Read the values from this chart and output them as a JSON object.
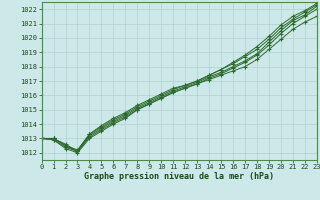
{
  "xlabel": "Graphe pression niveau de la mer (hPa)",
  "xlim": [
    0,
    23
  ],
  "ylim": [
    1011.5,
    1022.5
  ],
  "yticks": [
    1012,
    1013,
    1014,
    1015,
    1016,
    1017,
    1018,
    1019,
    1020,
    1021,
    1022
  ],
  "xticks": [
    0,
    1,
    2,
    3,
    4,
    5,
    6,
    7,
    8,
    9,
    10,
    11,
    12,
    13,
    14,
    15,
    16,
    17,
    18,
    19,
    20,
    21,
    22,
    23
  ],
  "bg_color": "#cce8e8",
  "grid_color": "#b0d0d0",
  "line_color": "#2d6a2d",
  "marker_color": "#2d6a2d",
  "axis_label_color": "#1a4a1a",
  "tick_label_color": "#1a4a1a",
  "border_color": "#4a8a4a",
  "curves": [
    [
      1013.0,
      1012.9,
      1012.4,
      1012.1,
      1013.1,
      1013.6,
      1014.1,
      1014.5,
      1015.0,
      1015.4,
      1015.8,
      1016.2,
      1016.5,
      1016.8,
      1017.1,
      1017.4,
      1017.7,
      1018.0,
      1018.5,
      1019.2,
      1019.9,
      1020.6,
      1021.1,
      1021.5
    ],
    [
      1013.0,
      1012.9,
      1012.3,
      1012.0,
      1013.0,
      1013.5,
      1014.0,
      1014.4,
      1015.0,
      1015.4,
      1015.8,
      1016.2,
      1016.5,
      1016.8,
      1017.2,
      1017.5,
      1017.9,
      1018.3,
      1018.8,
      1019.5,
      1020.3,
      1021.0,
      1021.5,
      1022.0
    ],
    [
      1013.0,
      1013.0,
      1012.5,
      1012.1,
      1013.2,
      1013.7,
      1014.2,
      1014.6,
      1015.1,
      1015.5,
      1015.9,
      1016.3,
      1016.6,
      1016.9,
      1017.3,
      1017.6,
      1018.0,
      1018.4,
      1018.9,
      1019.7,
      1020.5,
      1021.2,
      1021.6,
      1022.2
    ],
    [
      1013.0,
      1013.0,
      1012.6,
      1012.1,
      1013.3,
      1013.8,
      1014.3,
      1014.7,
      1015.2,
      1015.6,
      1016.0,
      1016.4,
      1016.7,
      1017.0,
      1017.4,
      1017.8,
      1018.2,
      1018.7,
      1019.2,
      1019.9,
      1020.7,
      1021.3,
      1021.8,
      1022.3
    ],
    [
      1013.0,
      1013.0,
      1012.5,
      1012.2,
      1013.3,
      1013.9,
      1014.4,
      1014.8,
      1015.3,
      1015.7,
      1016.1,
      1016.5,
      1016.7,
      1017.0,
      1017.4,
      1017.8,
      1018.3,
      1018.8,
      1019.4,
      1020.1,
      1020.9,
      1021.5,
      1021.9,
      1022.4
    ]
  ]
}
